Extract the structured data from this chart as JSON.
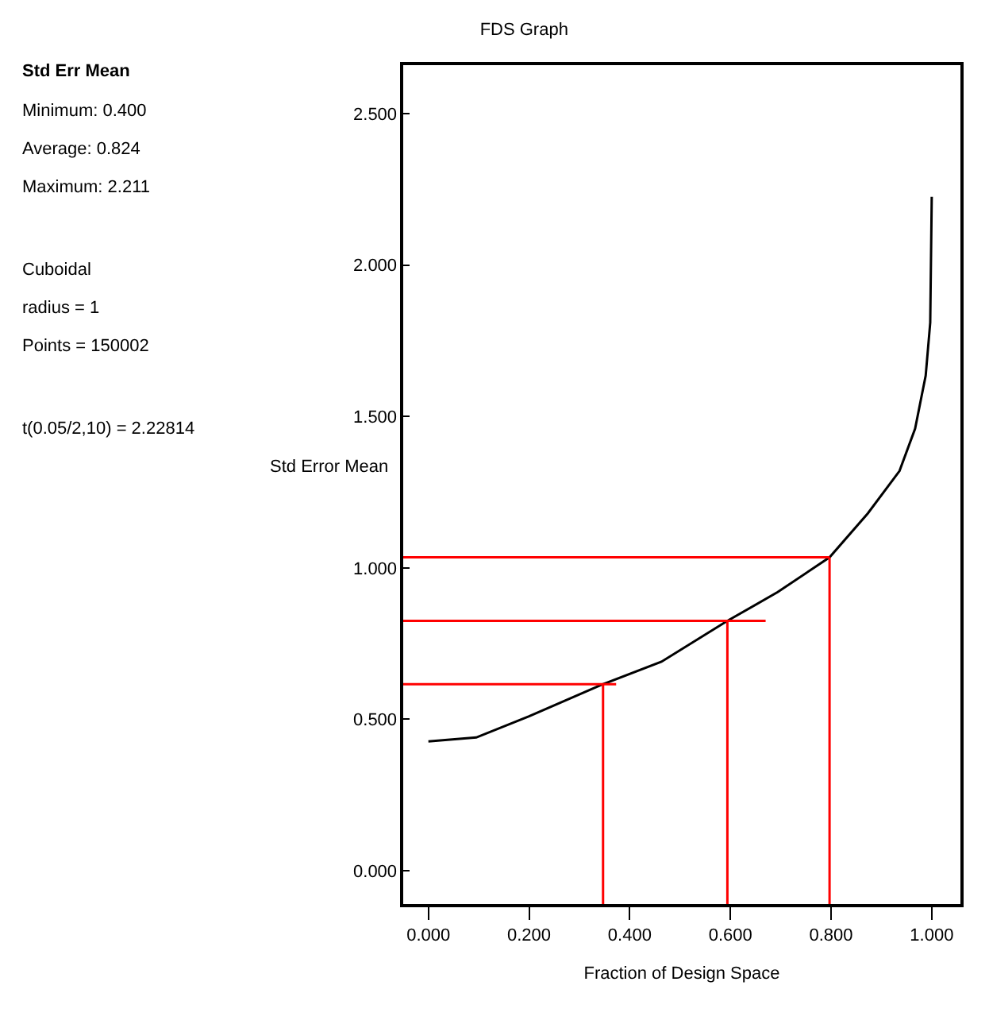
{
  "chart_data": {
    "type": "line",
    "title": "FDS Graph",
    "xlabel": "Fraction of Design Space",
    "ylabel": "Std Error Mean",
    "annotations": [
      "Std Err Mean",
      "Minimum: 0.400",
      "Average: 0.824",
      "Maximum: 2.211",
      "Cuboidal",
      "radius = 1",
      "Points = 150002",
      "t(0.05/2,10) = 2.22814"
    ],
    "xlim": [
      -0.05,
      1.057
    ],
    "ylim": [
      -0.11,
      2.66
    ],
    "xticks": [
      {
        "value": 0,
        "label": "0.000"
      },
      {
        "value": 0.2,
        "label": "0.200"
      },
      {
        "value": 0.4,
        "label": "0.400"
      },
      {
        "value": 0.6,
        "label": "0.600"
      },
      {
        "value": 0.8,
        "label": "0.800"
      },
      {
        "value": 1,
        "label": "1.000"
      }
    ],
    "yticks": [
      {
        "value": 0,
        "label": "0.000"
      },
      {
        "value": 0.5,
        "label": "0.500"
      },
      {
        "value": 1,
        "label": "1.000"
      },
      {
        "value": 1.5,
        "label": "1.500"
      },
      {
        "value": 2,
        "label": "2.000"
      },
      {
        "value": 2.5,
        "label": "2.500"
      }
    ],
    "marker": "none",
    "line_style": "solid",
    "series": [
      {
        "color": "#000000",
        "x": [
          0,
          0.095,
          0.2,
          0.347,
          0.463,
          0.594,
          0.694,
          0.797,
          0.873,
          0.936,
          0.967,
          0.988,
          0.997,
          1.0
        ],
        "values": [
          0.427,
          0.44,
          0.51,
          0.616,
          0.69,
          0.825,
          0.92,
          1.035,
          1.18,
          1.32,
          1.46,
          1.635,
          1.81,
          2.225
        ]
      },
      {
        "color": "#ff0000",
        "x": [
          -0.05,
          0.797
        ],
        "values": [
          1.035,
          1.035
        ]
      },
      {
        "color": "#ff0000",
        "x": [
          0.797,
          0.797
        ],
        "values": [
          -0.11,
          1.035
        ]
      },
      {
        "color": "#ff0000",
        "x": [
          -0.05,
          0.67
        ],
        "values": [
          0.825,
          0.825
        ]
      },
      {
        "color": "#ff0000",
        "x": [
          0.594,
          0.594
        ],
        "values": [
          -0.11,
          0.825
        ]
      },
      {
        "color": "#ff0000",
        "x": [
          -0.05,
          0.373
        ],
        "values": [
          0.616,
          0.616
        ]
      },
      {
        "color": "#ff0000",
        "x": [
          0.347,
          0.347
        ],
        "values": [
          -0.11,
          0.616
        ]
      }
    ]
  }
}
